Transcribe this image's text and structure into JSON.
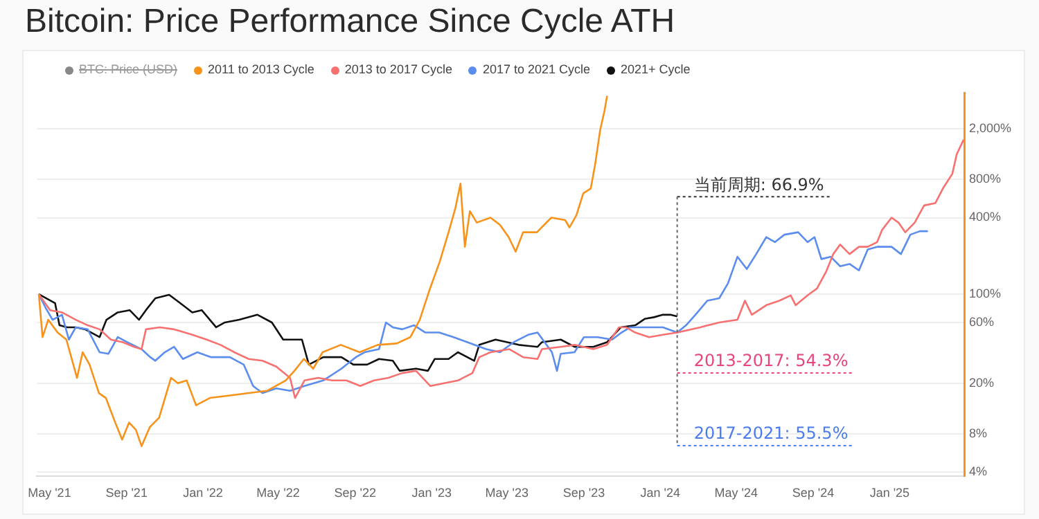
{
  "chart_data": {
    "type": "line",
    "title": "Bitcoin: Price Performance Since Cycle ATH",
    "log": "y",
    "grid": "y",
    "legend": "top left",
    "marker": "none",
    "line_style": "solid",
    "xlim": [
      "2021-04-11",
      "2025-05-01"
    ],
    "xticks": [
      {
        "value": "2021-05-01",
        "label": "May '21"
      },
      {
        "value": "2021-09-01",
        "label": "Sep '21"
      },
      {
        "value": "2022-01-01",
        "label": "Jan '22"
      },
      {
        "value": "2022-05-01",
        "label": "May '22"
      },
      {
        "value": "2022-09-01",
        "label": "Sep '22"
      },
      {
        "value": "2023-01-01",
        "label": "Jan '23"
      },
      {
        "value": "2023-05-01",
        "label": "May '23"
      },
      {
        "value": "2023-09-01",
        "label": "Sep '23"
      },
      {
        "value": "2024-01-01",
        "label": "Jan '24"
      },
      {
        "value": "2024-05-01",
        "label": "May '24"
      },
      {
        "value": "2024-09-01",
        "label": "Sep '24"
      },
      {
        "value": "2025-01-01",
        "label": "Jan '25"
      }
    ],
    "ylim": [
      3.7,
      3800
    ],
    "yticks": [
      {
        "value": 4,
        "label": "4%"
      },
      {
        "value": 8,
        "label": "8%"
      },
      {
        "value": 20,
        "label": "20%"
      },
      {
        "value": 60,
        "label": "60%"
      },
      {
        "value": 100,
        "label": "100%"
      },
      {
        "value": 400,
        "label": "400%"
      },
      {
        "value": 800,
        "label": "800%"
      },
      {
        "value": 2000,
        "label": "2,000%"
      }
    ],
    "annotations": [
      "当前周期: 66.9%",
      "2013-2017: 54.3%",
      "2017-2021: 55.5%"
    ],
    "series": [
      {
        "name": "BTC: Price (USD)",
        "color": "#888888"
      },
      {
        "name": "2011 to 2013 Cycle",
        "color": "#f7931a",
        "x": [
          "2021-04-14",
          "2021-04-20",
          "2021-04-29",
          "2021-05-14",
          "2021-05-28",
          "2021-06-14",
          "2021-06-23",
          "2021-07-04",
          "2021-07-19",
          "2021-07-30",
          "2021-08-14",
          "2021-08-25",
          "2021-09-05",
          "2021-09-16",
          "2021-09-25",
          "2021-10-08",
          "2021-10-23",
          "2021-11-11",
          "2021-11-22",
          "2021-12-06",
          "2021-12-21",
          "2022-01-12",
          "2022-02-13",
          "2022-03-15",
          "2022-04-13",
          "2022-05-13",
          "2022-05-27",
          "2022-06-11",
          "2022-06-26",
          "2022-07-11",
          "2022-08-09",
          "2022-09-08",
          "2022-10-07",
          "2022-11-06",
          "2022-11-28",
          "2022-12-13",
          "2022-12-28",
          "2023-01-14",
          "2023-01-28",
          "2023-02-08",
          "2023-02-16",
          "2023-02-23",
          "2023-03-03",
          "2023-03-14",
          "2023-04-05",
          "2023-04-20",
          "2023-05-04",
          "2023-05-15",
          "2023-05-27",
          "2023-06-18",
          "2023-07-11",
          "2023-08-02",
          "2023-08-09",
          "2023-08-20",
          "2023-08-31",
          "2023-09-12",
          "2023-09-19",
          "2023-09-27",
          "2023-10-04",
          "2023-10-08"
        ],
        "values": [
          100,
          46,
          63,
          50,
          44,
          22,
          35,
          28,
          16.7,
          15.3,
          9.8,
          7.2,
          9.8,
          8.6,
          6.4,
          9,
          10.7,
          22,
          20,
          21,
          13.4,
          15.3,
          16,
          16.7,
          17.4,
          21,
          25,
          31,
          26,
          35,
          40,
          35,
          40,
          41,
          46,
          63,
          106,
          181,
          307,
          478,
          742,
          236,
          450,
          366,
          400,
          351,
          281,
          216,
          307,
          307,
          400,
          383,
          335,
          418,
          622,
          679,
          1055,
          1959,
          2788,
          3630
        ]
      },
      {
        "name": "2013 to 2017 Cycle",
        "color": "#f87171",
        "x": [
          "2021-04-14",
          "2021-05-02",
          "2021-05-21",
          "2021-06-12",
          "2021-07-01",
          "2021-07-20",
          "2021-08-07",
          "2021-08-26",
          "2021-09-13",
          "2021-09-25",
          "2021-10-02",
          "2021-10-24",
          "2021-11-16",
          "2021-12-15",
          "2022-01-07",
          "2022-01-29",
          "2022-02-20",
          "2022-03-15",
          "2022-04-06",
          "2022-04-28",
          "2022-05-20",
          "2022-05-28",
          "2022-06-12",
          "2022-07-04",
          "2022-07-26",
          "2022-08-18",
          "2022-09-09",
          "2022-10-01",
          "2022-10-24",
          "2022-11-15",
          "2022-12-07",
          "2022-12-30",
          "2023-01-21",
          "2023-02-12",
          "2023-03-07",
          "2023-03-18",
          "2023-04-05",
          "2023-05-05",
          "2023-05-27",
          "2023-06-19",
          "2023-06-26",
          "2023-07-26",
          "2023-08-17",
          "2023-09-16",
          "2023-10-08",
          "2023-10-27",
          "2023-11-07",
          "2023-11-22",
          "2023-12-14",
          "2024-01-05",
          "2024-01-28",
          "2024-03-05",
          "2024-04-04",
          "2024-05-03",
          "2024-05-15",
          "2024-05-26",
          "2024-06-18",
          "2024-07-09",
          "2024-07-27",
          "2024-08-04",
          "2024-08-23",
          "2024-09-07",
          "2024-09-22",
          "2024-10-03",
          "2024-10-14",
          "2024-10-29",
          "2024-11-13",
          "2024-11-27",
          "2024-12-12",
          "2024-12-20",
          "2025-01-04",
          "2025-01-15",
          "2025-01-26",
          "2025-02-10",
          "2025-02-25",
          "2025-03-15",
          "2025-03-27",
          "2025-04-11",
          "2025-04-18",
          "2025-04-29"
        ],
        "values": [
          100,
          75,
          72,
          63,
          57,
          53,
          44,
          42,
          38.6,
          37,
          53,
          55,
          53,
          48,
          44,
          40,
          35,
          31,
          30,
          27,
          22,
          15.3,
          21,
          22,
          21,
          21,
          19,
          21,
          22,
          24,
          25,
          19,
          20,
          21,
          24,
          32,
          35,
          37,
          32,
          31,
          37,
          38.6,
          40,
          37,
          40,
          55,
          55,
          50,
          46,
          48,
          50,
          55,
          60,
          63,
          89,
          69,
          82,
          89,
          98,
          82,
          98,
          111,
          152,
          207,
          246,
          207,
          236,
          236,
          257,
          321,
          400,
          366,
          307,
          366,
          499,
          521,
          679,
          885,
          1259,
          1640
        ]
      },
      {
        "name": "2017 to 2021 Cycle",
        "color": "#5b8def",
        "x": [
          "2021-04-14",
          "2021-04-25",
          "2021-05-06",
          "2021-05-21",
          "2021-06-01",
          "2021-06-12",
          "2021-07-01",
          "2021-07-20",
          "2021-08-03",
          "2021-08-18",
          "2021-09-02",
          "2021-09-25",
          "2021-10-09",
          "2021-10-17",
          "2021-11-01",
          "2021-11-16",
          "2021-11-30",
          "2021-12-23",
          "2022-01-14",
          "2022-02-13",
          "2022-03-07",
          "2022-03-22",
          "2022-04-06",
          "2022-04-28",
          "2022-05-20",
          "2022-06-12",
          "2022-07-12",
          "2022-08-10",
          "2022-09-02",
          "2022-09-16",
          "2022-10-09",
          "2022-10-20",
          "2022-10-31",
          "2022-11-15",
          "2022-12-04",
          "2022-12-22",
          "2023-01-13",
          "2023-02-05",
          "2023-02-27",
          "2023-03-29",
          "2023-04-20",
          "2023-05-12",
          "2023-06-04",
          "2023-06-19",
          "2023-07-12",
          "2023-07-20",
          "2023-07-26",
          "2023-08-17",
          "2023-09-01",
          "2023-09-23",
          "2023-10-16",
          "2023-10-31",
          "2023-11-14",
          "2023-12-07",
          "2024-01-05",
          "2024-01-28",
          "2024-02-11",
          "2024-02-26",
          "2024-03-16",
          "2024-04-04",
          "2024-04-18",
          "2024-05-03",
          "2024-05-18",
          "2024-06-02",
          "2024-06-18",
          "2024-07-02",
          "2024-07-17",
          "2024-08-08",
          "2024-08-23",
          "2024-09-03",
          "2024-09-14",
          "2024-09-29",
          "2024-10-14",
          "2024-10-29",
          "2024-11-13",
          "2024-11-27",
          "2024-12-12",
          "2025-01-04",
          "2025-01-19",
          "2025-02-03",
          "2025-02-18",
          "2025-03-03"
        ],
        "values": [
          100,
          78,
          63,
          69,
          44,
          55,
          53,
          35,
          34,
          46,
          42,
          37,
          32,
          30,
          35,
          38.6,
          31,
          35,
          32,
          32,
          28,
          19,
          16.7,
          18.2,
          17.4,
          19,
          21,
          26,
          32,
          35,
          37,
          60,
          55,
          53,
          57,
          50,
          50,
          46,
          42,
          37,
          35,
          42,
          48,
          50,
          35,
          25,
          34,
          35,
          46,
          46,
          44,
          50,
          55,
          55,
          55,
          50,
          57,
          69,
          89,
          93,
          122,
          197,
          158,
          207,
          281,
          257,
          294,
          307,
          257,
          281,
          189,
          197,
          166,
          173,
          154,
          225,
          236,
          236,
          207,
          294,
          313,
          313
        ]
      },
      {
        "name": "2021+ Cycle",
        "color": "#111111",
        "x": [
          "2021-04-14",
          "2021-05-10",
          "2021-05-17",
          "2021-05-29",
          "2021-06-12",
          "2021-06-27",
          "2021-07-20",
          "2021-07-31",
          "2021-08-18",
          "2021-09-06",
          "2021-09-21",
          "2021-10-02",
          "2021-10-17",
          "2021-11-08",
          "2021-11-30",
          "2021-12-15",
          "2021-12-30",
          "2022-01-22",
          "2022-02-05",
          "2022-02-28",
          "2022-03-29",
          "2022-04-21",
          "2022-05-09",
          "2022-06-08",
          "2022-06-19",
          "2022-07-12",
          "2022-08-10",
          "2022-08-29",
          "2022-09-20",
          "2022-10-09",
          "2022-10-31",
          "2022-11-11",
          "2022-12-07",
          "2022-12-26",
          "2023-01-06",
          "2023-01-28",
          "2023-02-12",
          "2023-03-10",
          "2023-03-18",
          "2023-04-13",
          "2023-05-20",
          "2023-06-19",
          "2023-06-26",
          "2023-07-26",
          "2023-08-17",
          "2023-09-16",
          "2023-10-08",
          "2023-10-30",
          "2023-11-22",
          "2023-12-07",
          "2023-12-22",
          "2024-01-05",
          "2024-01-17",
          "2024-01-28"
        ],
        "values": [
          100,
          85,
          57,
          55,
          55,
          53,
          46,
          63,
          72,
          75,
          63,
          75,
          93,
          99,
          82,
          72,
          75,
          55,
          60,
          63,
          69,
          60,
          44,
          44,
          28,
          32,
          32,
          28,
          28,
          31,
          30,
          25,
          26,
          25,
          31,
          31,
          35,
          30,
          40,
          44,
          40,
          38.6,
          42,
          44,
          38.6,
          38.6,
          42,
          55,
          57,
          64,
          66,
          69,
          69,
          66.9
        ]
      }
    ]
  }
}
